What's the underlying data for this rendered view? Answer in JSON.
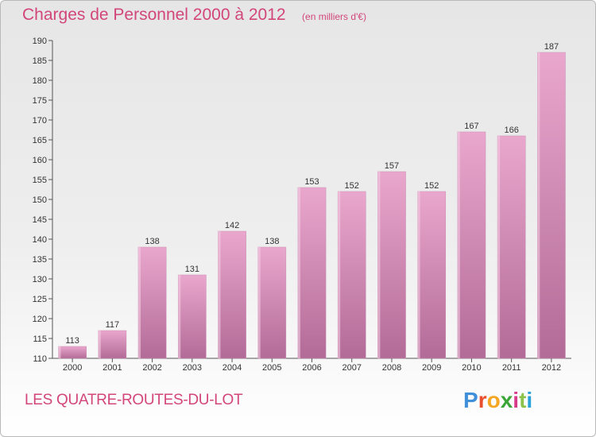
{
  "header": {
    "title": "Charges de Personnel 2000 à 2012",
    "unit_note": "(en milliers d'€)"
  },
  "footer": {
    "place_name": "LES QUATRE-ROUTES-DU-LOT",
    "brand": "Proxiti"
  },
  "colors": {
    "title": "#d2467a",
    "bar_top": "#eaa7cd",
    "bar_bottom": "#b26b97",
    "brand_letters": [
      "#3f8fd9",
      "#e94f2c",
      "#f5a623",
      "#3aa637",
      "#d83a8a",
      "#8bc34a",
      "#2aa1d8"
    ]
  },
  "chart_data": {
    "type": "bar",
    "categories": [
      "2000",
      "2001",
      "2002",
      "2003",
      "2004",
      "2005",
      "2006",
      "2007",
      "2008",
      "2009",
      "2010",
      "2011",
      "2012"
    ],
    "values": [
      113,
      117,
      138,
      131,
      142,
      138,
      153,
      152,
      157,
      152,
      167,
      166,
      187
    ],
    "ylim": [
      110,
      190
    ],
    "yticks": [
      110,
      115,
      120,
      125,
      130,
      135,
      140,
      145,
      150,
      155,
      160,
      165,
      170,
      175,
      180,
      185,
      190
    ],
    "grid": false,
    "data_labels": true
  }
}
